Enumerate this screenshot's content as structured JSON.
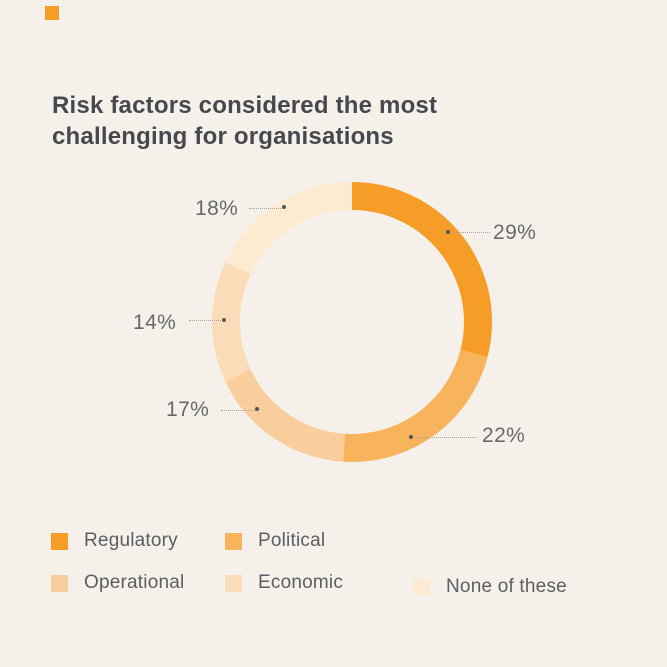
{
  "page": {
    "background": "#F5F1EA"
  },
  "brand": {
    "mark_color": "#F59D27"
  },
  "title": "Risk factors considered the most challenging for organisations",
  "chart_data": {
    "type": "pie",
    "subtype": "donut",
    "title": "Risk factors considered the most challenging for organisations",
    "categories": [
      "Regulatory",
      "Political",
      "Operational",
      "Economic",
      "None of these"
    ],
    "values": [
      29,
      22,
      17,
      14,
      18
    ],
    "unit": "%",
    "colors": [
      "#F59D27",
      "#F8B45C",
      "#FACD9D",
      "#FBDCB8",
      "#FCEAD1"
    ],
    "percent_labels": [
      "29%",
      "22%",
      "17%",
      "14%",
      "18%"
    ],
    "start_angle_deg": 0,
    "direction": "clockwise",
    "donut_hole": true,
    "grid": false,
    "legend_position": "bottom-left"
  },
  "legend": {
    "items": [
      {
        "label": "Regulatory",
        "color": "#F59D27"
      },
      {
        "label": "Political",
        "color": "#F8B45C"
      },
      {
        "label": "Operational",
        "color": "#FACD9D"
      },
      {
        "label": "Economic",
        "color": "#FBDCB8"
      },
      {
        "label": "None of these",
        "color": "#FCEAD1"
      }
    ]
  },
  "callout_style": {
    "line_color": "#A9A49B",
    "dot_color": "#53555A",
    "text_color": "#67696D"
  }
}
